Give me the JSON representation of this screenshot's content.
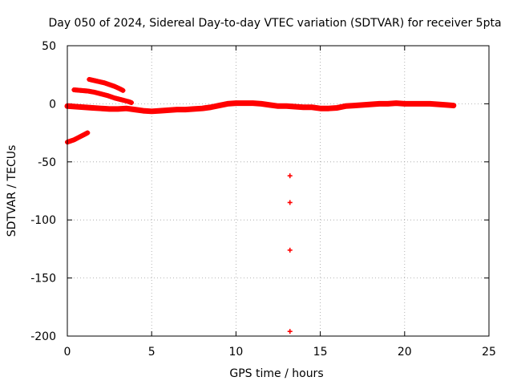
{
  "chart_data": {
    "type": "scatter",
    "title": "Day 050 of 2024, Sidereal Day-to-day VTEC variation (SDTVAR) for receiver 5pta",
    "xlabel": "GPS time / hours",
    "ylabel": "SDTVAR / TECUs",
    "xlim": [
      0,
      25
    ],
    "ylim": [
      -200,
      50
    ],
    "xticks": [
      0,
      5,
      10,
      15,
      20,
      25
    ],
    "yticks": [
      -200,
      -150,
      -100,
      -50,
      0,
      50
    ],
    "grid": true,
    "marker": "plus",
    "color": "#ff0000",
    "series": [
      {
        "name": "main-trace",
        "x": [
          0.0,
          0.5,
          1.0,
          1.5,
          2.0,
          2.5,
          3.0,
          3.5,
          4.0,
          4.5,
          5.0,
          5.5,
          6.0,
          6.5,
          7.0,
          7.5,
          8.0,
          8.5,
          9.0,
          9.5,
          10.0,
          10.5,
          11.0,
          11.5,
          12.0,
          12.5,
          13.0,
          13.5,
          14.0,
          14.5,
          15.0,
          15.5,
          16.0,
          16.5,
          17.0,
          17.5,
          18.0,
          18.5,
          19.0,
          19.5,
          20.0,
          20.5,
          21.0,
          21.5,
          22.0,
          22.5,
          22.9
        ],
        "y": [
          -2,
          -2.5,
          -3,
          -3.5,
          -4,
          -4.5,
          -4.5,
          -4,
          -5,
          -6,
          -6.5,
          -6,
          -5.5,
          -5,
          -5,
          -4.5,
          -4,
          -3,
          -1.5,
          0,
          0.5,
          0.5,
          0.5,
          0,
          -1,
          -2,
          -2,
          -2.5,
          -3,
          -3,
          -4,
          -4,
          -3.5,
          -2,
          -1.5,
          -1,
          -0.5,
          0,
          0,
          0.5,
          0,
          0,
          0,
          0,
          -0.5,
          -1,
          -1.5
        ]
      },
      {
        "name": "arc-1",
        "x": [
          1.3,
          1.6,
          1.9,
          2.2,
          2.5,
          2.8,
          3.1,
          3.3
        ],
        "y": [
          21,
          20,
          19,
          18,
          16.5,
          15,
          13,
          11.5
        ]
      },
      {
        "name": "arc-2",
        "x": [
          0.4,
          0.8,
          1.2,
          1.6,
          2.0,
          2.4,
          2.8,
          3.2,
          3.6,
          3.8
        ],
        "y": [
          12,
          11.5,
          11,
          10,
          8.5,
          7,
          5,
          3.5,
          2,
          1
        ]
      },
      {
        "name": "arc-3",
        "x": [
          0.0,
          0.2,
          0.4,
          0.6,
          0.8,
          1.0,
          1.2
        ],
        "y": [
          -33,
          -32,
          -31,
          -29.5,
          -28,
          -26.5,
          -25
        ]
      },
      {
        "name": "outliers",
        "x": [
          13.2,
          13.2,
          13.2,
          13.2
        ],
        "y": [
          -62,
          -85,
          -126,
          -196
        ]
      }
    ]
  }
}
